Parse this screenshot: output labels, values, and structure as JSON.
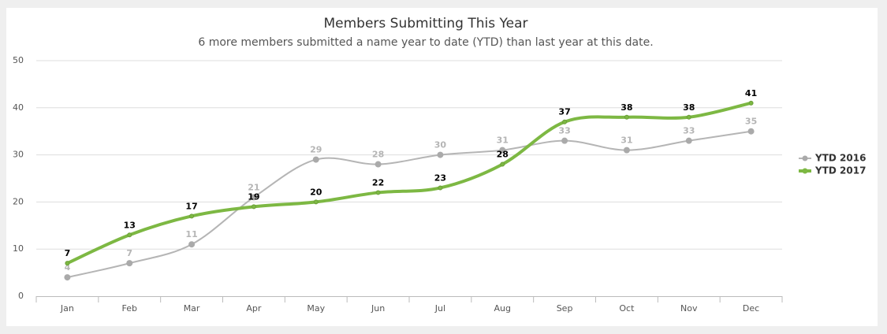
{
  "chart_data": {
    "type": "line",
    "title": "Members Submitting This Year",
    "subtitle": "6 more members submitted a name year to date (YTD) than last year at this date.",
    "categories": [
      "Jan",
      "Feb",
      "Mar",
      "Apr",
      "May",
      "Jun",
      "Jul",
      "Aug",
      "Sep",
      "Oct",
      "Nov",
      "Dec"
    ],
    "series": [
      {
        "name": "YTD 2016",
        "color": "#b5b5b5",
        "values": [
          4,
          7,
          11,
          21,
          29,
          28,
          30,
          31,
          33,
          31,
          33,
          35
        ]
      },
      {
        "name": "YTD 2017",
        "color": "#7db843",
        "values": [
          7,
          13,
          17,
          19,
          20,
          22,
          23,
          28,
          37,
          38,
          38,
          41
        ]
      }
    ],
    "ylim": [
      0,
      50
    ],
    "yticks": [
      0,
      10,
      20,
      30,
      40,
      50
    ],
    "grid": true,
    "legend": "right"
  }
}
